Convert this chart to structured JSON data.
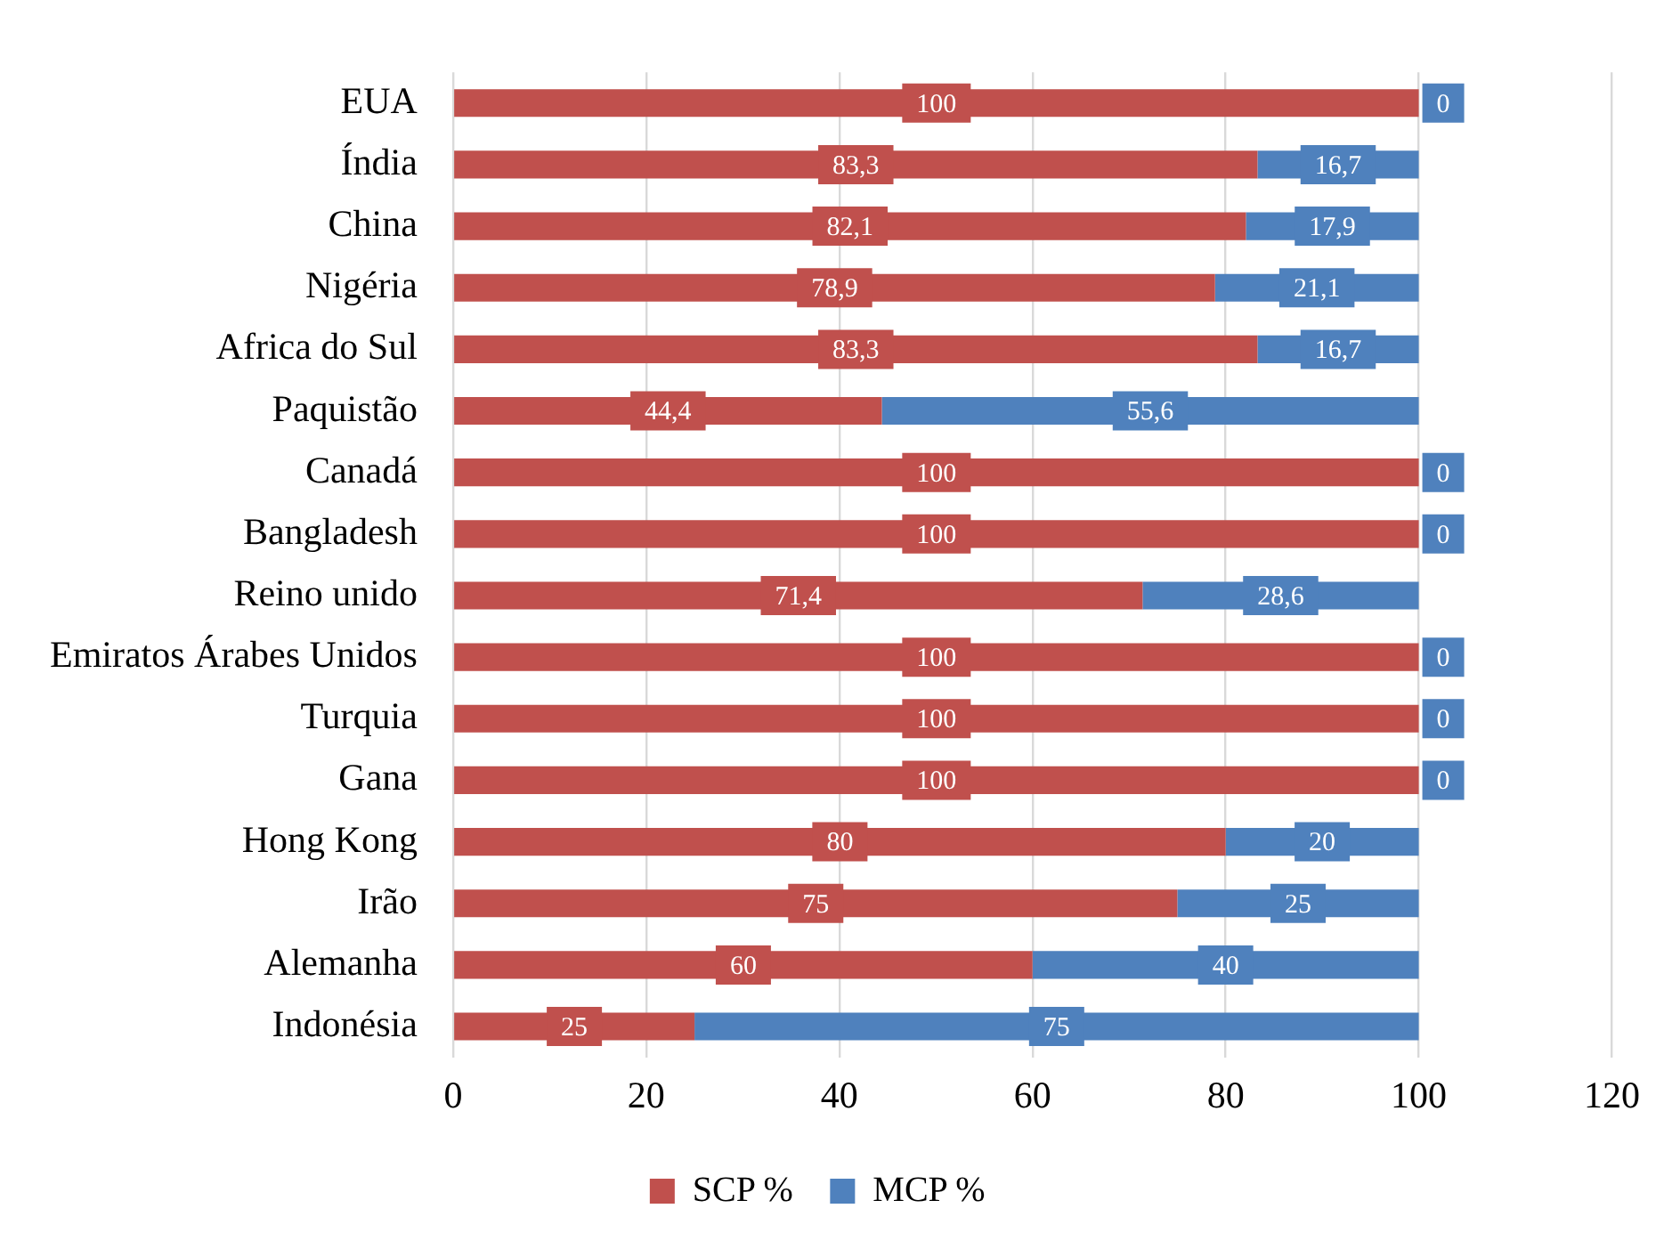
{
  "chart_data": {
    "type": "bar",
    "orientation": "horizontal",
    "stacked": true,
    "categories": [
      "EUA",
      "Índia",
      "China",
      "Nigéria",
      "Africa do Sul",
      "Paquistão",
      "Canadá",
      "Bangladesh",
      "Reino unido",
      "Emiratos Árabes Unidos",
      "Turquia",
      "Gana",
      "Hong Kong",
      "Irão",
      "Alemanha",
      "Indonésia"
    ],
    "series": [
      {
        "name": "SCP %",
        "color": "#c0504d",
        "values": [
          100,
          83.3,
          82.1,
          78.9,
          83.3,
          44.4,
          100,
          100,
          71.4,
          100,
          100,
          100,
          80,
          75,
          60,
          25
        ],
        "value_labels": [
          "100",
          "83,3",
          "82,1",
          "78,9",
          "83,3",
          "44,4",
          "100",
          "100",
          "71,4",
          "100",
          "100",
          "100",
          "80",
          "75",
          "60",
          "25"
        ]
      },
      {
        "name": "MCP %",
        "color": "#4f81bd",
        "values": [
          0,
          16.7,
          17.9,
          21.1,
          16.7,
          55.6,
          0,
          0,
          28.6,
          0,
          0,
          0,
          20,
          25,
          40,
          75
        ],
        "value_labels": [
          "0",
          "16,7",
          "17,9",
          "21,1",
          "16,7",
          "55,6",
          "0",
          "0",
          "28,6",
          "0",
          "0",
          "0",
          "20",
          "25",
          "40",
          "75"
        ]
      }
    ],
    "xlim": [
      0,
      120
    ],
    "xticks": [
      0,
      20,
      40,
      60,
      80,
      100,
      120
    ],
    "grid": "x",
    "legend": "bottom"
  }
}
